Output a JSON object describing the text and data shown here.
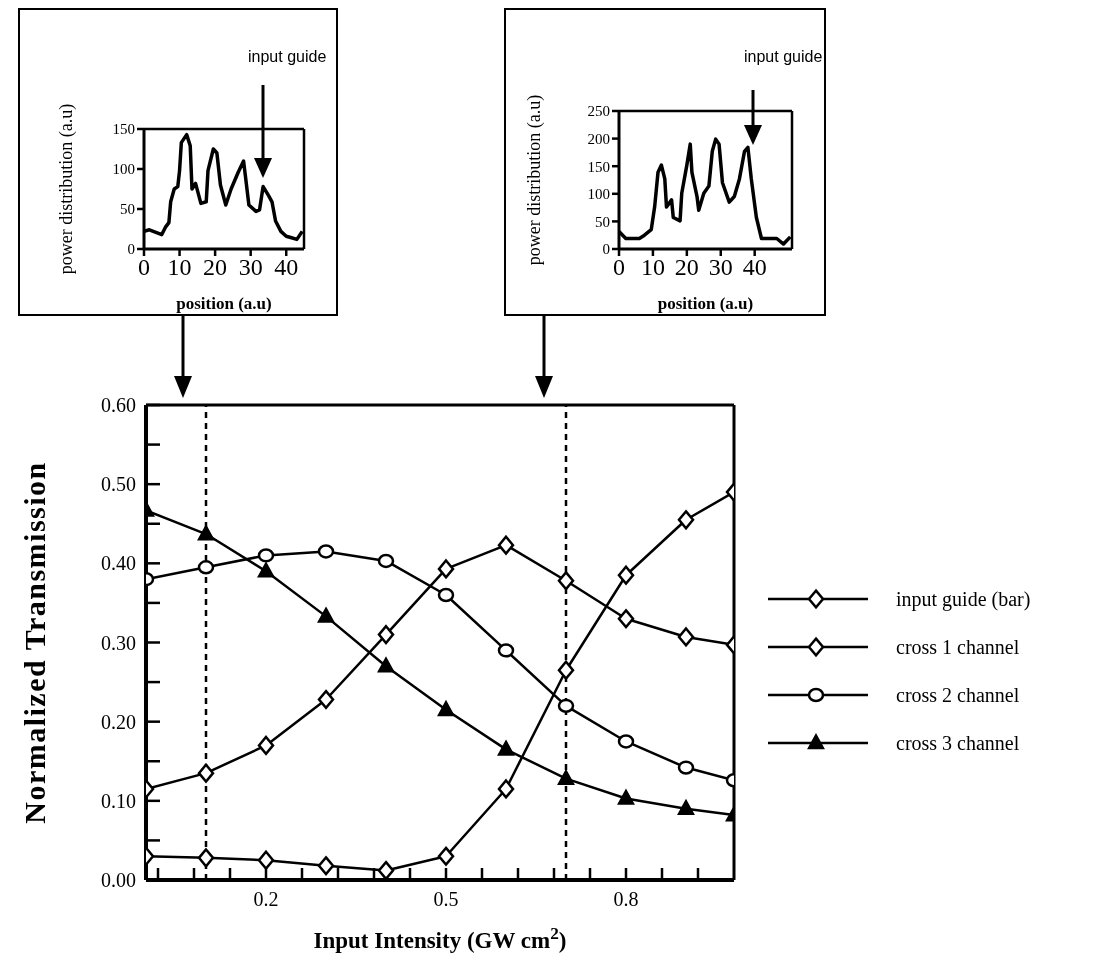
{
  "chart_data": [
    {
      "type": "line",
      "xlabel": "position (a.u)",
      "ylabel": "power distribution (a.u)",
      "annotations": [
        "input guide"
      ],
      "xlim": [
        0,
        45
      ],
      "ylim": [
        0,
        150
      ],
      "xticks": [
        0,
        10,
        20,
        30,
        40
      ],
      "yticks": [
        0,
        50,
        100,
        150
      ],
      "marker": "none",
      "line_style": "solid",
      "grid": false,
      "series": [
        {
          "color": "#000000",
          "x": [
            0,
            1.5,
            5,
            6,
            7,
            7.5,
            8.5,
            9.5,
            10,
            10.5,
            12,
            13,
            13.5,
            14.5,
            16,
            17.5,
            18,
            19.5,
            20.5,
            21.5,
            23,
            24.5,
            26.5,
            28,
            28.5,
            29.5,
            31.5,
            32.5,
            33.5,
            35,
            36,
            37,
            38.5,
            40,
            41.5,
            43,
            44.5
          ],
          "values": [
            22,
            24,
            18,
            27,
            33,
            59,
            75,
            78,
            98,
            133,
            143,
            129,
            75,
            82,
            57,
            59,
            98,
            125,
            120,
            80,
            55,
            75,
            96,
            110,
            92,
            55,
            47,
            49,
            78,
            67,
            59,
            35,
            22,
            16,
            14,
            12,
            22
          ]
        }
      ]
    },
    {
      "type": "line",
      "xlabel": "position (a.u)",
      "ylabel": "power distribution (a.u)",
      "annotations": [
        "input guide"
      ],
      "xlim": [
        0,
        51
      ],
      "ylim": [
        0,
        250
      ],
      "xticks": [
        0,
        10,
        20,
        30,
        40
      ],
      "yticks": [
        0,
        50,
        100,
        150,
        200,
        250
      ],
      "marker": "none",
      "line_style": "solid",
      "grid": false,
      "series": [
        {
          "color": "#000000",
          "x": [
            0,
            2,
            6,
            7.5,
            9.5,
            10.5,
            11.5,
            12.5,
            13.5,
            14,
            15.5,
            16,
            18,
            18.5,
            20,
            21,
            21.5,
            23,
            23.5,
            25,
            26.5,
            27.5,
            28.5,
            29.5,
            30.5,
            32.5,
            34,
            35.5,
            37,
            38,
            39,
            40.5,
            42,
            44.5,
            46.5,
            48.5,
            50.5
          ],
          "values": [
            32,
            19,
            19,
            25,
            35,
            76,
            139,
            152,
            127,
            76,
            89,
            57,
            51,
            101,
            152,
            190,
            139,
            95,
            70,
            101,
            114,
            177,
            199,
            190,
            120,
            85,
            95,
            127,
            177,
            184,
            127,
            57,
            19,
            19,
            19,
            9,
            22
          ]
        }
      ]
    },
    {
      "type": "line",
      "xlabel": "Input Intensity (GW cm$^{2}$)",
      "ylabel": "Normalized Transmission",
      "x": [
        0,
        0.1,
        0.2,
        0.3,
        0.4,
        0.5,
        0.6,
        0.7,
        0.8,
        0.9,
        0.98
      ],
      "xlim": [
        0,
        0.98
      ],
      "xticks": [
        {
          "value": 0.02,
          "label": null
        },
        {
          "value": 0.08,
          "label": null
        },
        {
          "value": 0.14,
          "label": null
        },
        0.2,
        {
          "value": 0.26,
          "label": null
        },
        {
          "value": 0.32,
          "label": null
        },
        {
          "value": 0.38,
          "label": null
        },
        {
          "value": 0.44,
          "label": null
        },
        0.5,
        {
          "value": 0.56,
          "label": null
        },
        {
          "value": 0.62,
          "label": null
        },
        {
          "value": 0.68,
          "label": null
        },
        {
          "value": 0.74,
          "label": null
        },
        0.8,
        {
          "value": 0.86,
          "label": null
        },
        {
          "value": 0.92,
          "label": null
        }
      ],
      "ylim": [
        0,
        0.6
      ],
      "yticks": [
        {
          "value": 0,
          "label": "0.00"
        },
        {
          "value": 0.05,
          "label": null
        },
        {
          "value": 0.1,
          "label": "0.10"
        },
        {
          "value": 0.15,
          "label": null
        },
        {
          "value": 0.2,
          "label": "0.20"
        },
        {
          "value": 0.25,
          "label": null
        },
        {
          "value": 0.3,
          "label": "0.30"
        },
        {
          "value": 0.35,
          "label": null
        },
        {
          "value": 0.4,
          "label": "0.40"
        },
        {
          "value": 0.45,
          "label": null
        },
        {
          "value": 0.5,
          "label": "0.50"
        },
        {
          "value": 0.55,
          "label": null
        },
        {
          "value": 0.6,
          "label": "0.60"
        }
      ],
      "grid": false,
      "legend": "right",
      "line_style": "solid",
      "ref_lines": [
        {
          "axis": "x",
          "value": 0.1,
          "color": "#000000",
          "line_style": "dashed"
        },
        {
          "axis": "x",
          "value": 0.7,
          "color": "#000000",
          "line_style": "dashed"
        }
      ],
      "series": [
        {
          "name": "input guide (bar)",
          "color": "#000000",
          "marker": "diamond",
          "values": [
            0.03,
            0.028,
            0.025,
            0.018,
            0.012,
            0.03,
            0.115,
            0.265,
            0.385,
            0.455,
            0.49
          ]
        },
        {
          "name": "cross 1 channel",
          "color": "#000000",
          "marker": "diamond",
          "values": [
            0.115,
            0.135,
            0.17,
            0.228,
            0.31,
            0.393,
            0.423,
            0.378,
            0.33,
            0.307,
            0.297
          ]
        },
        {
          "name": "cross 2 channel",
          "color": "#000000",
          "marker": "circle",
          "values": [
            0.38,
            0.395,
            0.41,
            0.415,
            0.403,
            0.36,
            0.29,
            0.22,
            0.175,
            0.142,
            0.126
          ]
        },
        {
          "name": "cross 3 channel",
          "color": "#000000",
          "marker": "triangle",
          "values": [
            0.467,
            0.437,
            0.39,
            0.333,
            0.27,
            0.215,
            0.165,
            0.128,
            0.103,
            0.09,
            0.082
          ]
        }
      ]
    }
  ]
}
